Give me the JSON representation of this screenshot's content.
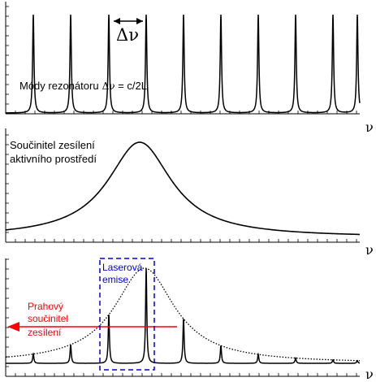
{
  "panels": {
    "top": {
      "spacing_label": "Δν",
      "modes_label": "Módy rezonátoru",
      "modes_formula_symbol": "Δν",
      "modes_formula_rest": " = c/2L",
      "axis_label": "ν"
    },
    "middle": {
      "gain_label_line1": "Součinitel zesílení",
      "gain_label_line2": "aktivního prostředí",
      "axis_label": "ν"
    },
    "bottom": {
      "lasing_label_line1": "Laserová",
      "lasing_label_line2": "emise",
      "threshold_label_line1": "Prahový",
      "threshold_label_line2": "součinitel",
      "threshold_label_line3": "zesílení",
      "axis_label": "ν"
    }
  },
  "colors": {
    "line": "#000000",
    "threshold": "#ff0000",
    "lasing_box": "#0000dd"
  }
}
